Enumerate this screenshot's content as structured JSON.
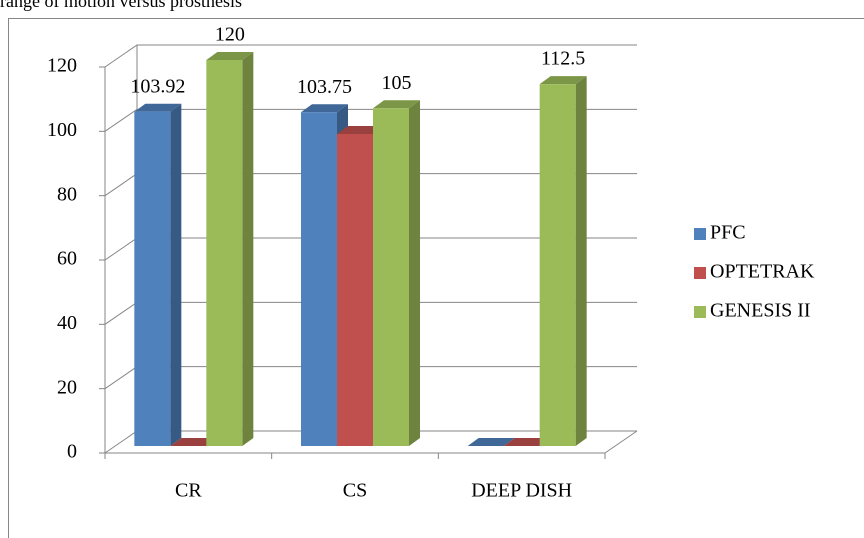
{
  "chart_data": {
    "type": "bar3d",
    "title": "range of motion versus prosthesis",
    "categories": [
      "CR",
      "CS",
      "DEEP DISH"
    ],
    "series": [
      {
        "name": "PFC",
        "color": "#4f81bd",
        "values": [
          103.92,
          103.75,
          0
        ],
        "value_labels": [
          "103.92",
          "103.75",
          null
        ]
      },
      {
        "name": "OPTETRAK",
        "color": "#c0504d",
        "values": [
          0,
          97,
          0
        ]
      },
      {
        "name": "GENESIS II",
        "color": "#9bbb59",
        "values": [
          120,
          105,
          112.5
        ],
        "value_labels": [
          "120",
          "105",
          "112.5"
        ]
      }
    ],
    "ylim": [
      0,
      120
    ],
    "yticks": [
      0,
      20,
      40,
      60,
      80,
      100,
      120
    ],
    "grid": true,
    "legend": "right"
  }
}
